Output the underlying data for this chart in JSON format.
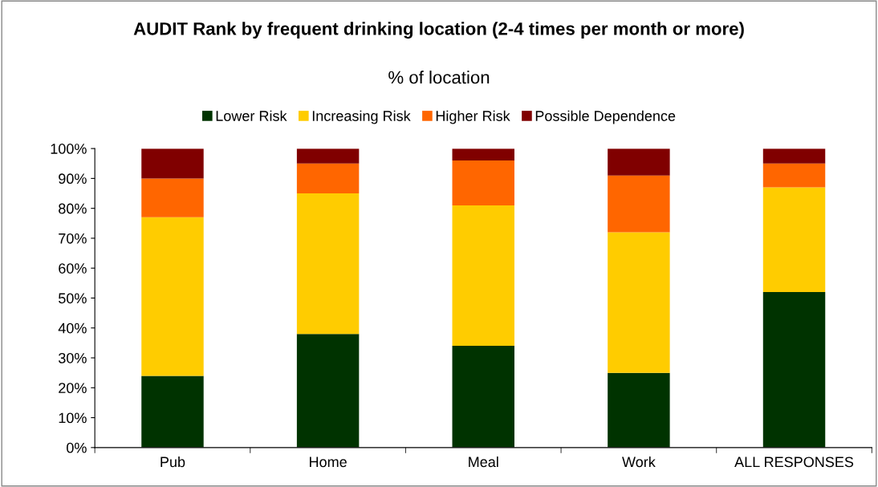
{
  "chart_data": {
    "type": "bar",
    "stacked": true,
    "title": "AUDIT Rank by frequent drinking location (2-4 times per month or more)",
    "subtitle": "% of location",
    "categories": [
      "Pub",
      "Home",
      "Meal",
      "Work",
      "ALL RESPONSES"
    ],
    "series": [
      {
        "name": "Lower Risk",
        "color": "#003300",
        "values": [
          24,
          38,
          34,
          25,
          52
        ]
      },
      {
        "name": "Increasing Risk",
        "color": "#ffcc00",
        "values": [
          53,
          47,
          47,
          47,
          35
        ]
      },
      {
        "name": "Higher Risk",
        "color": "#ff6600",
        "values": [
          13,
          10,
          15,
          19,
          8
        ]
      },
      {
        "name": "Possible Dependence",
        "color": "#800000",
        "values": [
          10,
          5,
          4,
          9,
          5
        ]
      }
    ],
    "ylim": [
      0,
      100
    ],
    "yticks": [
      {
        "value": 0,
        "label": "0%"
      },
      {
        "value": 10,
        "label": "10%"
      },
      {
        "value": 20,
        "label": "20%"
      },
      {
        "value": 30,
        "label": "30%"
      },
      {
        "value": 40,
        "label": "40%"
      },
      {
        "value": 50,
        "label": "50%"
      },
      {
        "value": 60,
        "label": "60%"
      },
      {
        "value": 70,
        "label": "70%"
      },
      {
        "value": 80,
        "label": "80%"
      },
      {
        "value": 90,
        "label": "90%"
      },
      {
        "value": 100,
        "label": "100%"
      }
    ],
    "grid": false,
    "legend": "top"
  }
}
